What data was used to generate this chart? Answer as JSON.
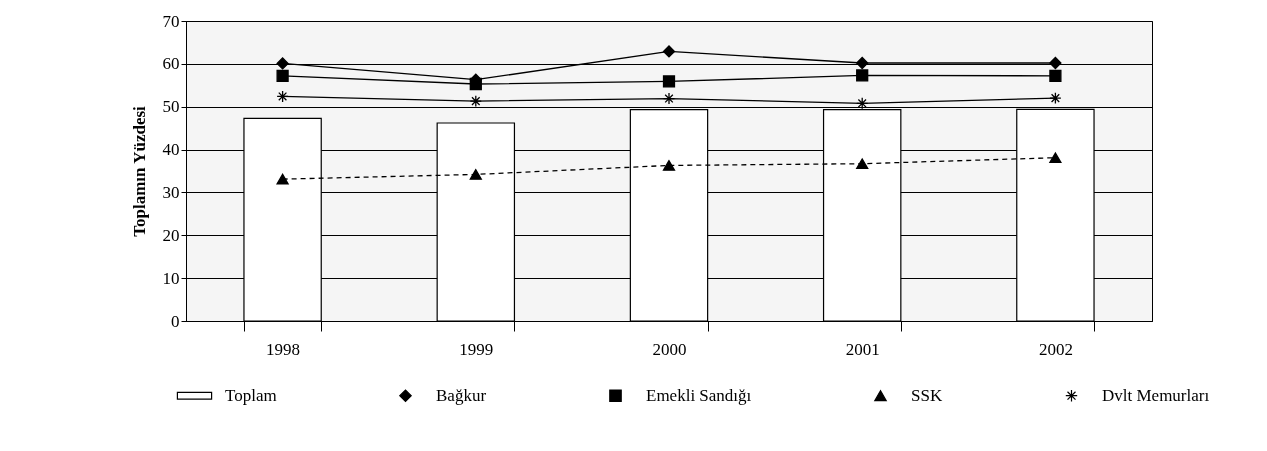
{
  "chart_data": {
    "type": "bar",
    "ylabel": "Toplamın Yüzdesi",
    "categories": [
      "1998",
      "1999",
      "2000",
      "2001",
      "2002"
    ],
    "series": [
      {
        "name": "Toplam",
        "color": "#ffffff",
        "values": [
          47.3,
          46.2,
          49.3,
          49.3,
          49.4
        ]
      },
      {
        "name": "Bağkur",
        "type": "line",
        "color": "#000000",
        "marker": "diamond",
        "line_style": "solid",
        "values": [
          60.1,
          56.3,
          62.9,
          60.2,
          60.2
        ]
      },
      {
        "name": "Emekli Sandığı",
        "type": "line",
        "color": "#000000",
        "marker": "square",
        "line_style": "solid",
        "values": [
          57.2,
          55.3,
          55.9,
          57.3,
          57.2
        ]
      },
      {
        "name": "SSK",
        "type": "line",
        "color": "#000000",
        "marker": "triangle",
        "line_style": "dashed",
        "values": [
          33.1,
          34.2,
          36.3,
          36.7,
          38.1
        ]
      },
      {
        "name": "Dvlt Memurları",
        "type": "line",
        "color": "#000000",
        "marker": "cross",
        "line_style": "solid",
        "values": [
          52.4,
          51.3,
          51.9,
          50.8,
          52.0
        ]
      }
    ],
    "ylim": [
      0,
      70
    ],
    "yticks": [
      0,
      10,
      20,
      30,
      40,
      50,
      60,
      70
    ],
    "grid": "y",
    "legend": "bottom"
  }
}
